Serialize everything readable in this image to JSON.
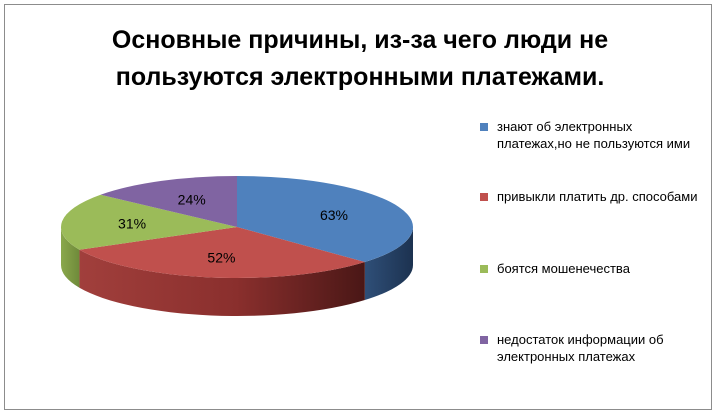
{
  "chart_data": {
    "type": "pie",
    "style": "3d",
    "title_lines": [
      "Основные причины, из-за чего люди не",
      "пользуются электронными платежами."
    ],
    "series": [
      {
        "name": "знают об электронных платежах,но не пользуются ими",
        "value": 63,
        "label": "63%",
        "color": "#4f81bd"
      },
      {
        "name": "привыкли платить др. способами",
        "value": 52,
        "label": "52%",
        "color": "#c0504d"
      },
      {
        "name": "боятся мошенечества",
        "value": 31,
        "label": "31%",
        "color": "#9bbb59"
      },
      {
        "name": "недостаток информации  об электронных платежах",
        "value": 24,
        "label": "24%",
        "color": "#8064a2"
      }
    ],
    "legend_position": "right"
  }
}
